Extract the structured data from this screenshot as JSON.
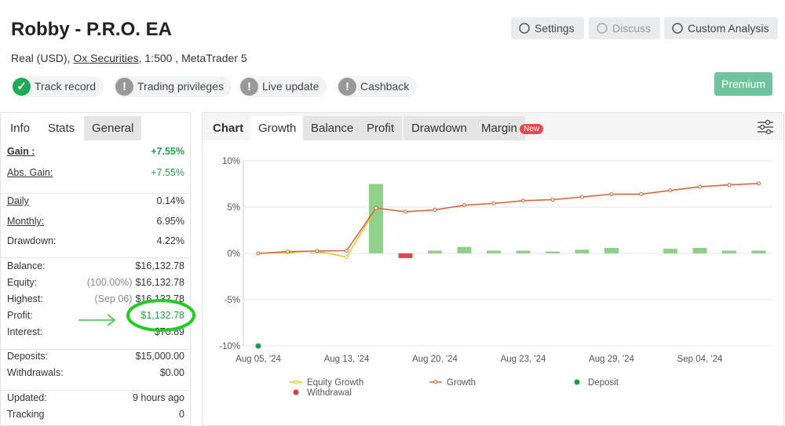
{
  "header": {
    "title": "Robby - P.R.O. EA",
    "account_type": "Real (USD),",
    "broker": "Ox Securities",
    "details": ", 1:500 , MetaTrader 5"
  },
  "buttons": [
    {
      "label": "Settings",
      "enabled": true
    },
    {
      "label": "Discuss",
      "enabled": false
    },
    {
      "label": "Custom Analysis",
      "enabled": true
    }
  ],
  "premium": "Premium",
  "badges": [
    {
      "label": "Track record",
      "status": "ok"
    },
    {
      "label": "Trading privileges",
      "status": "warn"
    },
    {
      "label": "Live update",
      "status": "warn"
    },
    {
      "label": "Cashback",
      "status": "warn"
    }
  ],
  "info_tabs": [
    "Info",
    "Stats",
    "General"
  ],
  "stats_groups": [
    [
      {
        "label": "Gain :",
        "value": "+7.55%"
      },
      {
        "label": "Abs. Gain:",
        "value": "+7.55%"
      }
    ],
    [
      {
        "label": "Daily",
        "value": "0.14%"
      },
      {
        "label": "Monthly:",
        "value": "6.95%"
      },
      {
        "label": "Drawdown:",
        "value": "4.22%"
      }
    ],
    [
      {
        "label": "Balance:",
        "value": "$16,132.78"
      },
      {
        "label": "Equity:",
        "note": "(100.00%)",
        "value": "$16,132.78"
      },
      {
        "label": "Highest:",
        "note": "(Sep 06)",
        "value": "$16,132.78"
      },
      {
        "label": "Profit:",
        "value": "$1,132.78"
      },
      {
        "label": "Interest:",
        "value": "$70.89"
      }
    ],
    [
      {
        "label": "Deposits:",
        "value": "$15,000.00"
      },
      {
        "label": "Withdrawals:",
        "value": "$0.00"
      }
    ],
    [
      {
        "label": "Updated:",
        "value": "9 hours ago"
      },
      {
        "label": "Tracking",
        "value": "0"
      }
    ]
  ],
  "chart_tabs": [
    "Chart",
    "Growth",
    "Balance",
    "Profit",
    "Drawdown",
    "Margin"
  ],
  "new_badge": "New",
  "chart_data": {
    "type": "line",
    "categories": [
      "Aug 05, '24",
      null,
      null,
      "Aug 13, '24",
      null,
      null,
      "Aug 20, '24",
      null,
      null,
      "Aug 23, '24",
      null,
      null,
      "Aug 29, '24",
      null,
      null,
      "Sep 04, '24",
      null,
      null
    ],
    "series": [
      {
        "name": "Equity Growth",
        "type": "line",
        "color": "#e5c41a",
        "values": [
          0,
          0.1,
          0.25,
          -0.4,
          4.9,
          4.5,
          4.7,
          5.2,
          5.4,
          5.7,
          5.8,
          6.1,
          6.4,
          6.4,
          6.8,
          7.2,
          7.4,
          7.55
        ]
      },
      {
        "name": "Growth",
        "type": "line",
        "color": "#d9633f",
        "values": [
          0,
          0.2,
          0.25,
          0.3,
          4.9,
          4.5,
          4.7,
          5.2,
          5.4,
          5.7,
          5.8,
          6.1,
          6.4,
          6.4,
          6.8,
          7.2,
          7.4,
          7.55
        ]
      },
      {
        "name": "Deposit",
        "type": "scatter",
        "color": "#1a9a4a",
        "values": [
          -10,
          null,
          null,
          null,
          null,
          null,
          null,
          null,
          null,
          null,
          null,
          null,
          null,
          null,
          null,
          null,
          null,
          null
        ]
      },
      {
        "name": "Withdrawal",
        "type": "scatter",
        "color": "#e0393e",
        "values": [
          null,
          null,
          null,
          null,
          null,
          null,
          null,
          null,
          null,
          null,
          null,
          null,
          null,
          null,
          null,
          null,
          null,
          null
        ]
      }
    ],
    "bars": {
      "color": "#8fd18a",
      "negative_color": "#e0464b",
      "values": [
        null,
        0.1,
        0.1,
        0,
        7.5,
        -0.5,
        0.3,
        0.7,
        0.3,
        0.3,
        0.2,
        0.4,
        0.6,
        0,
        0.5,
        0.6,
        0.3,
        0.3
      ]
    },
    "ylim": [
      -10,
      10
    ],
    "yticks": [
      {
        "value": -10,
        "label": "-10%"
      },
      {
        "value": -5,
        "label": "-5%"
      },
      {
        "value": 0,
        "label": "0%"
      },
      {
        "value": 5,
        "label": "5%"
      },
      {
        "value": 10,
        "label": "10%"
      }
    ],
    "grid": true
  }
}
